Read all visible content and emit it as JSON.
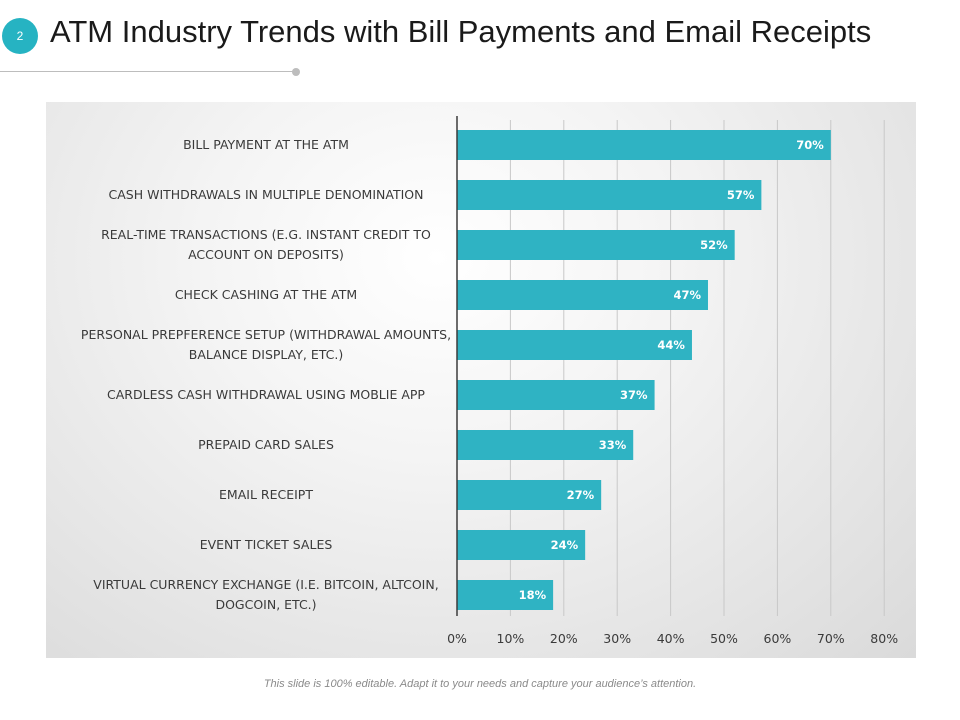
{
  "header": {
    "slide_number": "2",
    "title": "ATM Industry Trends with Bill Payments and Email Receipts"
  },
  "footer": {
    "note": "This slide is 100% editable. Adapt it to your needs and capture your audience’s attention."
  },
  "colors": {
    "bar": "#2fb3c3",
    "accent": "#26b3c2",
    "gridline": "#c8c8c8",
    "axis": "#3c3c3c"
  },
  "chart_data": {
    "type": "bar",
    "orientation": "horizontal",
    "title": "",
    "xlabel": "",
    "ylabel": "",
    "xlim": [
      0,
      80
    ],
    "ticks": [
      "0%",
      "10%",
      "20%",
      "30%",
      "40%",
      "50%",
      "60%",
      "70%",
      "80%"
    ],
    "tick_values": [
      0,
      10,
      20,
      30,
      40,
      50,
      60,
      70,
      80
    ],
    "grid": true,
    "categories": [
      [
        "BILL PAYMENT AT THE ATM"
      ],
      [
        "CASH WITHDRAWALS IN MULTIPLE DENOMINATION"
      ],
      [
        "REAL-TIME TRANSACTIONS (E.G. INSTANT CREDIT TO",
        "ACCOUNT ON DEPOSITS)"
      ],
      [
        "CHECK CASHING AT THE ATM"
      ],
      [
        "PERSONAL PREPFERENCE SETUP (WITHDRAWAL AMOUNTS,",
        "BALANCE DISPLAY, ETC.)"
      ],
      [
        "CARDLESS CASH WITHDRAWAL USING MOBLIE APP"
      ],
      [
        "PREPAID CARD SALES"
      ],
      [
        "EMAIL RECEIPT"
      ],
      [
        "EVENT TICKET SALES"
      ],
      [
        "VIRTUAL CURRENCY EXCHANGE (I.E. BITCOIN, ALTCOIN,",
        "DOGCOIN, ETC.)"
      ]
    ],
    "values": [
      70,
      57,
      52,
      47,
      44,
      37,
      33,
      27,
      24,
      18
    ],
    "data_labels": [
      "70%",
      "57%",
      "52%",
      "47%",
      "44%",
      "37%",
      "33%",
      "27%",
      "24%",
      "18%"
    ]
  }
}
